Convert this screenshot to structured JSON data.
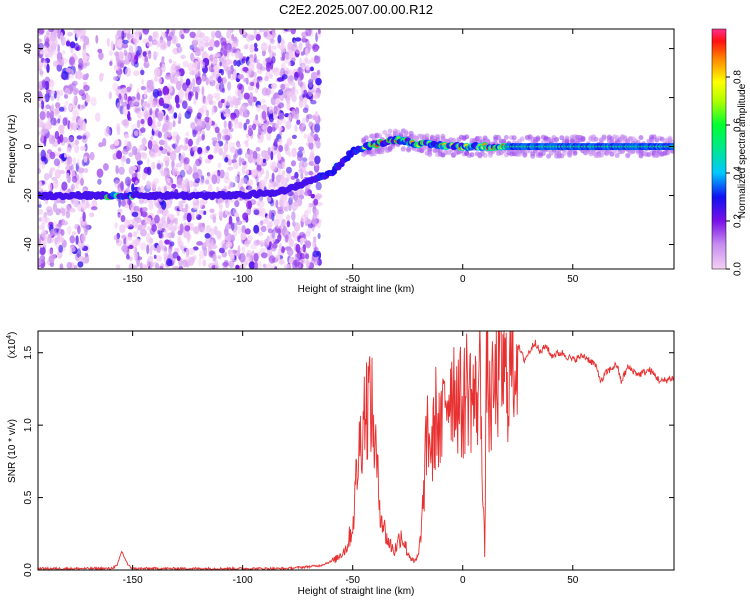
{
  "figure": {
    "title": "C2E2.2025.007.00.00.R12"
  },
  "chart_data": [
    {
      "type": "heatmap",
      "title": "C2E2.2025.007.00.00.R12",
      "xlabel": "Height of straight line (km)",
      "ylabel": "Frequency (Hz)",
      "xlim": [
        -193,
        96
      ],
      "ylim": [
        -50,
        48
      ],
      "x_ticks": [
        -150,
        -100,
        -50,
        0,
        50
      ],
      "y_ticks": [
        -40,
        -20,
        0,
        20,
        40
      ],
      "colorbar": {
        "label": "Normalized spectral amplitude",
        "range": [
          0.0,
          1.0
        ],
        "ticks": [
          0.0,
          0.2,
          0.4,
          0.6,
          0.8
        ],
        "colormap": [
          "#f5d0f5",
          "#b070f0",
          "#6a00e0",
          "#1010f0",
          "#00c8ff",
          "#00ff40",
          "#ffff00",
          "#ff8000",
          "#ff0000",
          "#ff3090"
        ]
      },
      "ridge": {
        "x": [
          -193,
          -160,
          -130,
          -100,
          -80,
          -70,
          -60,
          -50,
          -40,
          -30,
          -20,
          0,
          20,
          50,
          96
        ],
        "y": [
          -20,
          -20,
          -20,
          -20,
          -18,
          -14,
          -11,
          -2,
          1,
          3,
          1,
          0,
          0,
          0,
          0
        ]
      }
    },
    {
      "type": "line",
      "xlabel": "Height of straight line (km)",
      "ylabel": "SNR (10 * v/v)",
      "y_scale_label": "(x10",
      "y_scale_exp": "4",
      "xlim": [
        -193,
        96
      ],
      "ylim": [
        0,
        1.65
      ],
      "x_ticks": [
        -150,
        -100,
        -50,
        0,
        50
      ],
      "y_ticks": [
        0.0,
        0.5,
        1.0,
        1.5
      ],
      "color": "#e83030",
      "series": [
        {
          "x": [
            -193,
            -160,
            -157,
            -155,
            -152,
            -150,
            -120,
            -80,
            -65,
            -58,
            -53,
            -50,
            -48,
            -45,
            -42,
            -40,
            -38,
            -36,
            -34,
            -31,
            -28,
            -25,
            -22,
            -20,
            -18,
            -16,
            -14,
            -12,
            -10,
            -8,
            -5,
            -3,
            0,
            2,
            4,
            6,
            8,
            10,
            11,
            12,
            14,
            17,
            20,
            23,
            25,
            28,
            30,
            33,
            35,
            38,
            40,
            45,
            50,
            55,
            60,
            63,
            65,
            70,
            72,
            75,
            80,
            85,
            90,
            96
          ],
          "y": [
            0.01,
            0.01,
            0.03,
            0.13,
            0.03,
            0.01,
            0.01,
            0.01,
            0.03,
            0.07,
            0.15,
            0.3,
            0.7,
            1.1,
            1.2,
            0.9,
            0.5,
            0.3,
            0.2,
            0.13,
            0.25,
            0.12,
            0.05,
            0.1,
            0.45,
            1.0,
            0.8,
            1.1,
            0.9,
            1.2,
            1.3,
            1.25,
            1.1,
            1.3,
            1.2,
            1.15,
            1.35,
            0.1,
            1.62,
            1.1,
            1.2,
            1.4,
            1.3,
            1.45,
            1.55,
            1.45,
            1.5,
            1.58,
            1.5,
            1.55,
            1.48,
            1.5,
            1.45,
            1.48,
            1.42,
            1.3,
            1.36,
            1.42,
            1.3,
            1.4,
            1.35,
            1.38,
            1.3,
            1.33
          ]
        }
      ]
    }
  ]
}
